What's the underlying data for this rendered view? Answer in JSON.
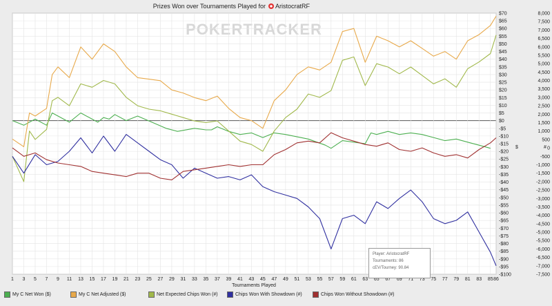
{
  "chart_data": {
    "type": "line",
    "title": "Prizes Won over Tournaments Played for",
    "player_name": "AristocratRF",
    "watermark": "POKERTRACKER",
    "xlabel": "Tournaments Played",
    "x_ticks": [
      "1",
      "3",
      "5",
      "7",
      "9",
      "11",
      "13",
      "15",
      "17",
      "19",
      "21",
      "23",
      "25",
      "27",
      "29",
      "31",
      "33",
      "35",
      "37",
      "39",
      "41",
      "43",
      "45",
      "47",
      "49",
      "51",
      "53",
      "55",
      "57",
      "59",
      "61",
      "63",
      "65",
      "67",
      "69",
      "71",
      "73",
      "75",
      "77",
      "79",
      "81",
      "83",
      "85",
      "86"
    ],
    "xlim": [
      1,
      86
    ],
    "left_axis_label": "$",
    "left_ylim": [
      -100,
      70
    ],
    "left_ticks": [
      70,
      65,
      60,
      55,
      50,
      45,
      40,
      35,
      30,
      25,
      20,
      15,
      10,
      5,
      0,
      -5,
      -10,
      -15,
      -20,
      -25,
      -30,
      -35,
      -40,
      -45,
      -50,
      -55,
      -60,
      -65,
      -70,
      -75,
      -80,
      -85,
      -90,
      -95,
      -100
    ],
    "right_axis_label": "#",
    "right_ylim": [
      -7500,
      8000
    ],
    "right_ticks": [
      8000,
      7500,
      7000,
      6500,
      6000,
      5500,
      5000,
      4500,
      4000,
      3500,
      3000,
      2500,
      2000,
      1500,
      1000,
      500,
      0,
      -500,
      -1000,
      -1500,
      -2000,
      -2500,
      -3000,
      -3500,
      -4000,
      -4500,
      -5000,
      -5500,
      -6000,
      -6500,
      -7000,
      -7500
    ],
    "series": [
      {
        "name": "My C Net Won ($)",
        "axis": "left",
        "color": "#4caf50",
        "points": [
          [
            1,
            0
          ],
          [
            3,
            -3
          ],
          [
            5,
            1
          ],
          [
            7,
            -3
          ],
          [
            8,
            5
          ],
          [
            11,
            -1
          ],
          [
            13,
            5
          ],
          [
            16,
            -1
          ],
          [
            17,
            2
          ],
          [
            18,
            1
          ],
          [
            19,
            4
          ],
          [
            21,
            0
          ],
          [
            23,
            3
          ],
          [
            28,
            -5
          ],
          [
            30,
            -7
          ],
          [
            33,
            -5
          ],
          [
            35,
            -6
          ],
          [
            36,
            -6
          ],
          [
            37,
            -4
          ],
          [
            39,
            -7
          ],
          [
            41,
            -9
          ],
          [
            43,
            -8
          ],
          [
            45,
            -11
          ],
          [
            47,
            -8
          ],
          [
            49,
            -9
          ],
          [
            53,
            -12
          ],
          [
            56,
            -16
          ],
          [
            57,
            -18
          ],
          [
            59,
            -13
          ],
          [
            63,
            -15
          ],
          [
            64,
            -8
          ],
          [
            65,
            -9
          ],
          [
            67,
            -7
          ],
          [
            69,
            -9
          ],
          [
            71,
            -8
          ],
          [
            73,
            -9
          ],
          [
            75,
            -11
          ],
          [
            77,
            -13
          ],
          [
            79,
            -12
          ],
          [
            81,
            -14
          ],
          [
            83,
            -16
          ],
          [
            85,
            -18
          ]
        ]
      },
      {
        "name": "My C Net Adjusted ($)",
        "axis": "left",
        "color": "#e8a94a",
        "points": [
          [
            1,
            -12
          ],
          [
            3,
            -17
          ],
          [
            4,
            5
          ],
          [
            5,
            3
          ],
          [
            7,
            8
          ],
          [
            8,
            30
          ],
          [
            9,
            35
          ],
          [
            11,
            28
          ],
          [
            13,
            48
          ],
          [
            15,
            40
          ],
          [
            17,
            50
          ],
          [
            19,
            45
          ],
          [
            21,
            35
          ],
          [
            23,
            28
          ],
          [
            25,
            27
          ],
          [
            27,
            26
          ],
          [
            29,
            20
          ],
          [
            31,
            18
          ],
          [
            33,
            15
          ],
          [
            35,
            13
          ],
          [
            37,
            16
          ],
          [
            39,
            8
          ],
          [
            41,
            2
          ],
          [
            43,
            0
          ],
          [
            45,
            -5
          ],
          [
            47,
            13
          ],
          [
            49,
            20
          ],
          [
            51,
            30
          ],
          [
            53,
            35
          ],
          [
            55,
            33
          ],
          [
            57,
            38
          ],
          [
            59,
            58
          ],
          [
            61,
            60
          ],
          [
            63,
            38
          ],
          [
            65,
            55
          ],
          [
            67,
            52
          ],
          [
            69,
            48
          ],
          [
            71,
            52
          ],
          [
            73,
            47
          ],
          [
            75,
            42
          ],
          [
            77,
            45
          ],
          [
            79,
            40
          ],
          [
            81,
            52
          ],
          [
            83,
            56
          ],
          [
            85,
            62
          ],
          [
            86,
            68
          ]
        ]
      },
      {
        "name": "Net Expected Chips Won (#)",
        "axis": "right",
        "color": "#a0b84a",
        "points": [
          [
            1,
            -500
          ],
          [
            3,
            -2000
          ],
          [
            4,
            1000
          ],
          [
            5,
            500
          ],
          [
            7,
            1100
          ],
          [
            8,
            2800
          ],
          [
            9,
            3000
          ],
          [
            11,
            2500
          ],
          [
            13,
            3800
          ],
          [
            15,
            3600
          ],
          [
            17,
            4000
          ],
          [
            19,
            3800
          ],
          [
            21,
            3000
          ],
          [
            23,
            2500
          ],
          [
            25,
            2300
          ],
          [
            27,
            2200
          ],
          [
            29,
            2000
          ],
          [
            31,
            1800
          ],
          [
            33,
            1600
          ],
          [
            35,
            1500
          ],
          [
            37,
            1600
          ],
          [
            39,
            1000
          ],
          [
            41,
            400
          ],
          [
            43,
            200
          ],
          [
            45,
            -200
          ],
          [
            47,
            1000
          ],
          [
            49,
            1800
          ],
          [
            51,
            2300
          ],
          [
            53,
            3200
          ],
          [
            55,
            3000
          ],
          [
            57,
            3400
          ],
          [
            59,
            5200
          ],
          [
            61,
            5400
          ],
          [
            63,
            3700
          ],
          [
            65,
            5000
          ],
          [
            67,
            4800
          ],
          [
            69,
            4400
          ],
          [
            71,
            4800
          ],
          [
            73,
            4300
          ],
          [
            75,
            3800
          ],
          [
            77,
            4100
          ],
          [
            79,
            3600
          ],
          [
            81,
            4700
          ],
          [
            83,
            5100
          ],
          [
            85,
            5600
          ],
          [
            86,
            6700
          ]
        ]
      },
      {
        "name": "Chips Won With Showdown (#)",
        "axis": "right",
        "color": "#3030a0",
        "points": [
          [
            1,
            -500
          ],
          [
            3,
            -1500
          ],
          [
            5,
            -400
          ],
          [
            7,
            -1000
          ],
          [
            9,
            -800
          ],
          [
            11,
            -200
          ],
          [
            13,
            600
          ],
          [
            15,
            -300
          ],
          [
            17,
            700
          ],
          [
            19,
            -200
          ],
          [
            21,
            800
          ],
          [
            23,
            300
          ],
          [
            25,
            -200
          ],
          [
            27,
            -700
          ],
          [
            29,
            -1000
          ],
          [
            31,
            -1800
          ],
          [
            33,
            -1200
          ],
          [
            35,
            -1500
          ],
          [
            37,
            -1800
          ],
          [
            39,
            -1700
          ],
          [
            41,
            -1900
          ],
          [
            43,
            -1600
          ],
          [
            45,
            -2300
          ],
          [
            47,
            -2600
          ],
          [
            49,
            -2800
          ],
          [
            51,
            -3000
          ],
          [
            53,
            -3500
          ],
          [
            55,
            -4200
          ],
          [
            57,
            -6000
          ],
          [
            59,
            -4200
          ],
          [
            61,
            -4000
          ],
          [
            63,
            -4500
          ],
          [
            65,
            -3200
          ],
          [
            67,
            -3600
          ],
          [
            69,
            -3000
          ],
          [
            71,
            -2500
          ],
          [
            73,
            -3200
          ],
          [
            75,
            -4200
          ],
          [
            77,
            -4500
          ],
          [
            79,
            -4300
          ],
          [
            81,
            -3800
          ],
          [
            83,
            -5000
          ],
          [
            85,
            -6200
          ],
          [
            86,
            -7000
          ]
        ]
      },
      {
        "name": "Chips Won Without Showdown (#)",
        "axis": "right",
        "color": "#a03030",
        "points": [
          [
            1,
            0
          ],
          [
            3,
            -500
          ],
          [
            5,
            -300
          ],
          [
            7,
            -700
          ],
          [
            9,
            -900
          ],
          [
            11,
            -1000
          ],
          [
            13,
            -1100
          ],
          [
            15,
            -1400
          ],
          [
            17,
            -1500
          ],
          [
            19,
            -1600
          ],
          [
            21,
            -1700
          ],
          [
            23,
            -1500
          ],
          [
            25,
            -1500
          ],
          [
            27,
            -1800
          ],
          [
            29,
            -1900
          ],
          [
            31,
            -1400
          ],
          [
            33,
            -1300
          ],
          [
            35,
            -1200
          ],
          [
            37,
            -1100
          ],
          [
            39,
            -1000
          ],
          [
            41,
            -1100
          ],
          [
            43,
            -1000
          ],
          [
            45,
            -1000
          ],
          [
            47,
            -400
          ],
          [
            49,
            -100
          ],
          [
            51,
            300
          ],
          [
            53,
            400
          ],
          [
            55,
            300
          ],
          [
            57,
            900
          ],
          [
            59,
            600
          ],
          [
            61,
            400
          ],
          [
            63,
            200
          ],
          [
            65,
            100
          ],
          [
            67,
            300
          ],
          [
            69,
            -100
          ],
          [
            71,
            -200
          ],
          [
            73,
            0
          ],
          [
            75,
            -300
          ],
          [
            77,
            -500
          ],
          [
            79,
            -400
          ],
          [
            81,
            -600
          ],
          [
            83,
            -100
          ],
          [
            85,
            300
          ],
          [
            86,
            600
          ]
        ]
      }
    ],
    "grid": true,
    "legend_position": "bottom",
    "info_box": {
      "player": "Player: AristocratRF",
      "tournaments": "Tournaments: 86",
      "cev": "cEV/Tourney: 90.84"
    }
  }
}
